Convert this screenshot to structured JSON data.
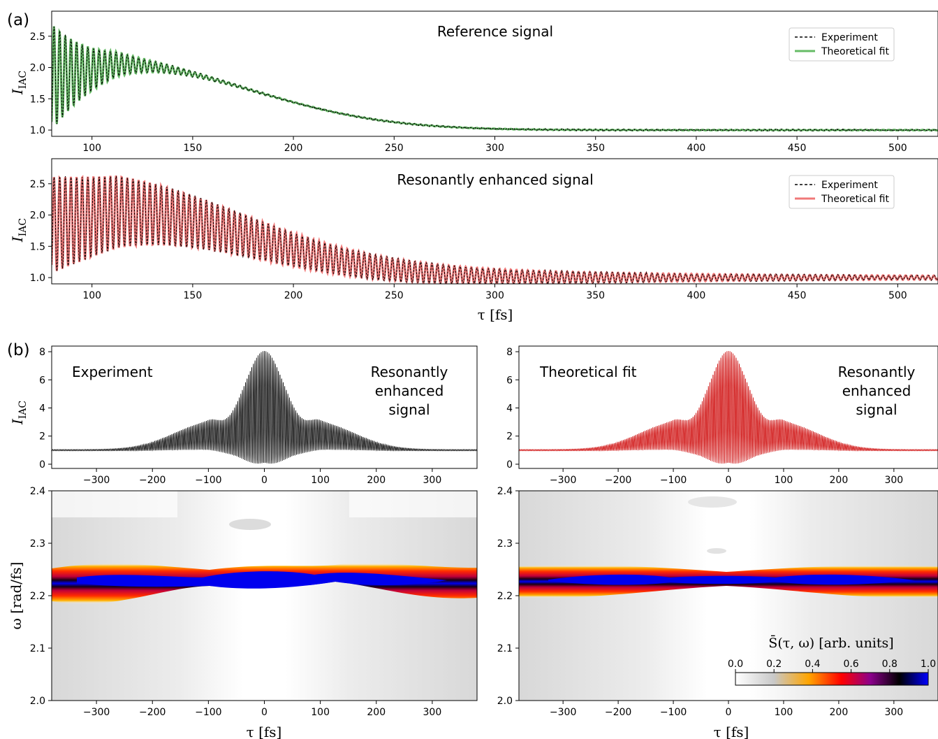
{
  "figure": {
    "panel_a_label": "(a)",
    "panel_b_label": "(b)",
    "colorbar": {
      "label": "S̄(τ, ω) [arb. units]",
      "ticks": [
        "0.0",
        "0.2",
        "0.4",
        "0.6",
        "0.8",
        "1.0"
      ],
      "colors": [
        "#ffffff",
        "#c8c8c8",
        "#ffa500",
        "#ff0000",
        "#8b008b",
        "#000000",
        "#0000ff"
      ]
    }
  },
  "chart_data": [
    {
      "id": "a-reference",
      "type": "line",
      "annotation": "Reference signal",
      "xlabel": "",
      "ylabel": "I_IAC",
      "xlim": [
        80,
        520
      ],
      "ylim": [
        0.9,
        2.9
      ],
      "xticks": [
        100,
        150,
        200,
        250,
        300,
        350,
        400,
        450,
        500
      ],
      "yticks": [
        1.0,
        1.5,
        2.0,
        2.5
      ],
      "legend": "top-right",
      "series": [
        {
          "name": "Experiment",
          "style": "dashed",
          "color": "#000000",
          "envelope_peak_x": 112,
          "envelope_peak_y": 2.05,
          "baseline": 1.0,
          "oscillation_period_fs": 2.8
        },
        {
          "name": "Theoretical fit",
          "style": "solid",
          "color": "#66bb66",
          "envelope_peak_x": 112,
          "envelope_peak_y": 2.05,
          "baseline": 1.0,
          "oscillation_period_fs": 2.8
        }
      ]
    },
    {
      "id": "a-resonant",
      "type": "line",
      "annotation": "Resonantly enhanced signal",
      "xlabel": "τ [fs]",
      "ylabel": "I_IAC",
      "xlim": [
        80,
        520
      ],
      "ylim": [
        0.9,
        2.9
      ],
      "xticks": [
        100,
        150,
        200,
        250,
        300,
        350,
        400,
        450,
        500
      ],
      "yticks": [
        1.0,
        1.5,
        2.0,
        2.5
      ],
      "legend": "top-right",
      "series": [
        {
          "name": "Experiment",
          "style": "dashed",
          "color": "#000000",
          "envelope_peak_x": 112,
          "envelope_peak_y": 2.05,
          "baseline": 1.0,
          "oscillation_period_fs": 2.8
        },
        {
          "name": "Theoretical fit",
          "style": "solid",
          "color": "#f07878",
          "envelope_peak_x": 112,
          "envelope_peak_y": 2.05,
          "baseline": 1.0,
          "oscillation_period_fs": 2.8
        }
      ]
    },
    {
      "id": "b-exp-trace",
      "type": "line",
      "annotation_left": "Experiment",
      "annotation_right": [
        "Resonantly",
        "enhanced",
        "signal"
      ],
      "xlabel": "",
      "ylabel": "I_IAC",
      "xlim": [
        -380,
        380
      ],
      "ylim": [
        -0.3,
        8.4
      ],
      "xticks": [
        -300,
        -200,
        -100,
        0,
        100,
        200,
        300
      ],
      "yticks": [
        0,
        2,
        4,
        6,
        8
      ],
      "series": [
        {
          "color": "#000000",
          "peak": 8,
          "baseline": 1,
          "shoulder_x": 100,
          "shoulder_y": 2.6
        }
      ]
    },
    {
      "id": "b-fit-trace",
      "type": "line",
      "annotation_left": "Theoretical fit",
      "annotation_right": [
        "Resonantly",
        "enhanced",
        "signal"
      ],
      "xlabel": "",
      "ylabel": "",
      "xlim": [
        -380,
        380
      ],
      "ylim": [
        -0.3,
        8.4
      ],
      "xticks": [
        -300,
        -200,
        -100,
        0,
        100,
        200,
        300
      ],
      "yticks": [
        0,
        2,
        4,
        6,
        8
      ],
      "series": [
        {
          "color": "#cc0000",
          "peak": 8,
          "baseline": 1,
          "shoulder_x": 100,
          "shoulder_y": 2.6
        }
      ]
    },
    {
      "id": "b-exp-spectrogram",
      "type": "heatmap",
      "xlabel": "τ [fs]",
      "ylabel": "ω [rad/fs]",
      "xlim": [
        -380,
        380
      ],
      "ylim": [
        2.0,
        2.4
      ],
      "xticks": [
        -300,
        -200,
        -100,
        0,
        100,
        200,
        300
      ],
      "yticks": [
        2.0,
        2.1,
        2.2,
        2.3,
        2.4
      ],
      "band_center_omega": 2.225,
      "peak_value": 1.0
    },
    {
      "id": "b-fit-spectrogram",
      "type": "heatmap",
      "xlabel": "τ [fs]",
      "ylabel": "",
      "xlim": [
        -380,
        380
      ],
      "ylim": [
        2.0,
        2.4
      ],
      "xticks": [
        -300,
        -200,
        -100,
        0,
        100,
        200,
        300
      ],
      "yticks": [
        2.0,
        2.1,
        2.2,
        2.3,
        2.4
      ],
      "band_center_omega": 2.225,
      "peak_value": 1.0
    }
  ]
}
